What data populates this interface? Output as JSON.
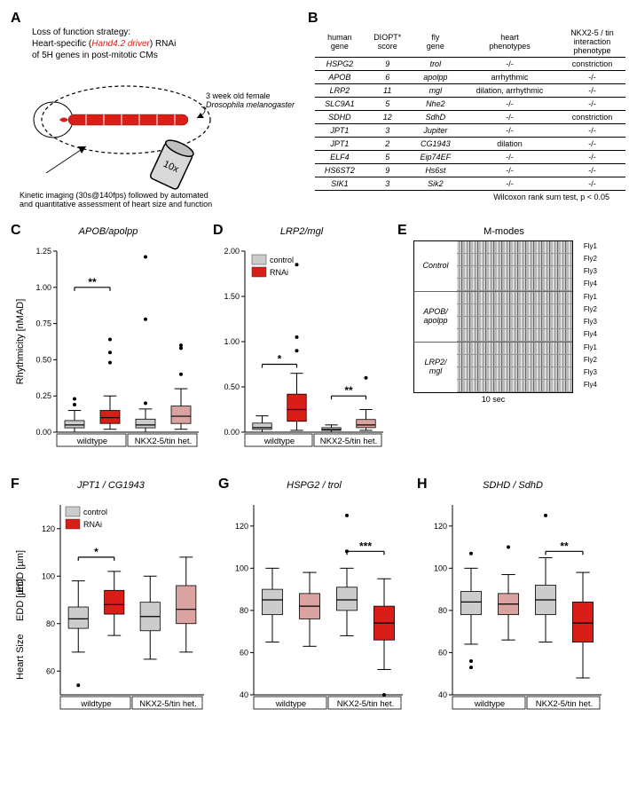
{
  "panelA": {
    "label": "A",
    "text_line1": "Loss of function strategy:",
    "text_line2a": "Heart-specific (",
    "text_line2b": "Hand4.2 driver",
    "text_line2c": ") RNAi",
    "text_line3": "of 5H genes in post-mitotic CMs",
    "side_text1": "3 week old female",
    "side_text2": "Drosophila melanogaster",
    "bottom_text1": "Kinetic imaging (30s@140fps) followed by automated",
    "bottom_text2": "and quantitative assessment of heart size and function",
    "lens_label": "10x"
  },
  "panelB": {
    "label": "B",
    "headers": [
      "human\ngene",
      "DIOPT*\nscore",
      "fly\ngene",
      "heart\nphenotypes",
      "NKX2-5 / tin\ninteraction\nphenotype"
    ],
    "rows": [
      [
        "HSPG2",
        "9",
        "trol",
        "-/-",
        "constriction"
      ],
      [
        "APOB",
        "6",
        "apolpp",
        "arrhythmic",
        "-/-"
      ],
      [
        "LRP2",
        "11",
        "mgl",
        "dilation, arrhythmic",
        "-/-"
      ],
      [
        "SLC9A1",
        "5",
        "Nhe2",
        "-/-",
        "-/-"
      ],
      [
        "SDHD",
        "12",
        "SdhD",
        "-/-",
        "constriction"
      ],
      [
        "JPT1",
        "3",
        "Jupiter",
        "-/-",
        "-/-"
      ],
      [
        "JPT1",
        "2",
        "CG1943",
        "dilation",
        "-/-"
      ],
      [
        "ELF4",
        "5",
        "Eip74EF",
        "-/-",
        "-/-"
      ],
      [
        "HS6ST2",
        "9",
        "Hs6st",
        "-/-",
        "-/-"
      ],
      [
        "SIK1",
        "3",
        "Sik2",
        "-/-",
        "-/-"
      ]
    ],
    "footnote": "Wilcoxon rank sum test,  p < 0.05"
  },
  "legend": {
    "control_label": "control",
    "control_color": "#cccccc",
    "rnai_label": "RNAi",
    "rnai_color": "#d91e18",
    "rnai_faded": "#dba39f"
  },
  "panelC": {
    "label": "C",
    "title": "APOB/apolpp",
    "ylabel": "Rhythmicity [nMAD]",
    "ylim": [
      0,
      1.25
    ],
    "yticks": [
      0.0,
      0.25,
      0.5,
      0.75,
      1.0,
      1.25
    ],
    "groups": [
      "wildtype",
      "NKX2-5/tin het."
    ],
    "sig": "**",
    "boxes": [
      {
        "x": 0,
        "color": "#cccccc",
        "q1": 0.03,
        "med": 0.05,
        "q3": 0.08,
        "lo": 0.0,
        "hi": 0.15,
        "outliers": [
          0.19,
          0.23
        ]
      },
      {
        "x": 1,
        "color": "#d91e18",
        "q1": 0.06,
        "med": 0.1,
        "q3": 0.15,
        "lo": 0.02,
        "hi": 0.25,
        "outliers": [
          0.48,
          0.55,
          0.64
        ]
      },
      {
        "x": 2,
        "color": "#cccccc",
        "q1": 0.03,
        "med": 0.05,
        "q3": 0.09,
        "lo": 0.0,
        "hi": 0.16,
        "outliers": [
          0.2,
          0.78,
          1.21
        ]
      },
      {
        "x": 3,
        "color": "#dba39f",
        "q1": 0.06,
        "med": 0.11,
        "q3": 0.18,
        "lo": 0.02,
        "hi": 0.3,
        "outliers": [
          0.4,
          0.58,
          0.6
        ]
      }
    ]
  },
  "panelD": {
    "label": "D",
    "title": "LRP2/mgl",
    "ylabel": "",
    "ylim": [
      0,
      2.0
    ],
    "yticks": [
      0.0,
      0.5,
      1.0,
      1.5,
      2.0
    ],
    "groups": [
      "wildtype",
      "NKX2-5/tin het."
    ],
    "sig1": "*",
    "sig2": "**",
    "boxes": [
      {
        "x": 0,
        "color": "#cccccc",
        "q1": 0.03,
        "med": 0.05,
        "q3": 0.1,
        "lo": 0.0,
        "hi": 0.18,
        "outliers": []
      },
      {
        "x": 1,
        "color": "#d91e18",
        "q1": 0.12,
        "med": 0.25,
        "q3": 0.42,
        "lo": 0.02,
        "hi": 0.65,
        "outliers": [
          0.9,
          1.05,
          1.85
        ]
      },
      {
        "x": 2,
        "color": "#cccccc",
        "q1": 0.02,
        "med": 0.03,
        "q3": 0.05,
        "lo": 0.0,
        "hi": 0.08,
        "outliers": []
      },
      {
        "x": 3,
        "color": "#dba39f",
        "q1": 0.05,
        "med": 0.08,
        "q3": 0.14,
        "lo": 0.02,
        "hi": 0.25,
        "outliers": [
          0.6
        ]
      }
    ]
  },
  "panelE": {
    "label": "E",
    "title": "M-modes",
    "sections": [
      "Control",
      "APOB/\napolpp",
      "LRP2/\nmgl"
    ],
    "fly_labels": [
      "Fly1",
      "Fly2",
      "Fly3",
      "Fly4"
    ],
    "xlabel": "10 sec"
  },
  "panelF": {
    "label": "F",
    "title": "JPT1 / CG1943",
    "ylabel_top": "EDD [µm]",
    "ylabel_bottom": "Heart Size",
    "ylim": [
      50,
      130
    ],
    "yticks": [
      60,
      80,
      100,
      120
    ],
    "groups": [
      "wildtype",
      "NKX2-5/tin het."
    ],
    "sig": "*",
    "boxes": [
      {
        "x": 0,
        "color": "#cccccc",
        "q1": 78,
        "med": 82,
        "q3": 87,
        "lo": 68,
        "hi": 98,
        "outliers": [
          54
        ]
      },
      {
        "x": 1,
        "color": "#d91e18",
        "q1": 84,
        "med": 88,
        "q3": 94,
        "lo": 75,
        "hi": 102,
        "outliers": []
      },
      {
        "x": 2,
        "color": "#cccccc",
        "q1": 77,
        "med": 83,
        "q3": 89,
        "lo": 65,
        "hi": 100,
        "outliers": []
      },
      {
        "x": 3,
        "color": "#dba39f",
        "q1": 80,
        "med": 86,
        "q3": 96,
        "lo": 68,
        "hi": 108,
        "outliers": []
      }
    ]
  },
  "panelG": {
    "label": "G",
    "title": "HSPG2 / trol",
    "ylim": [
      40,
      130
    ],
    "yticks": [
      40,
      60,
      80,
      100,
      120
    ],
    "groups": [
      "wildtype",
      "NKX2-5/tin het."
    ],
    "sig": "***",
    "boxes": [
      {
        "x": 0,
        "color": "#cccccc",
        "q1": 78,
        "med": 85,
        "q3": 90,
        "lo": 65,
        "hi": 100,
        "outliers": []
      },
      {
        "x": 1,
        "color": "#dba39f",
        "q1": 76,
        "med": 82,
        "q3": 88,
        "lo": 63,
        "hi": 98,
        "outliers": []
      },
      {
        "x": 2,
        "color": "#cccccc",
        "q1": 80,
        "med": 85,
        "q3": 91,
        "lo": 68,
        "hi": 100,
        "outliers": [
          108,
          125
        ]
      },
      {
        "x": 3,
        "color": "#d91e18",
        "q1": 66,
        "med": 74,
        "q3": 82,
        "lo": 52,
        "hi": 95,
        "outliers": [
          40
        ]
      }
    ]
  },
  "panelH": {
    "label": "H",
    "title": "SDHD / SdhD",
    "ylim": [
      40,
      130
    ],
    "yticks": [
      40,
      60,
      80,
      100,
      120
    ],
    "groups": [
      "wildtype",
      "NKX2-5/tin het."
    ],
    "sig": "**",
    "boxes": [
      {
        "x": 0,
        "color": "#cccccc",
        "q1": 78,
        "med": 84,
        "q3": 89,
        "lo": 64,
        "hi": 100,
        "outliers": [
          53,
          56,
          107
        ]
      },
      {
        "x": 1,
        "color": "#dba39f",
        "q1": 78,
        "med": 83,
        "q3": 88,
        "lo": 66,
        "hi": 97,
        "outliers": [
          110
        ]
      },
      {
        "x": 2,
        "color": "#cccccc",
        "q1": 78,
        "med": 85,
        "q3": 92,
        "lo": 65,
        "hi": 105,
        "outliers": [
          125
        ]
      },
      {
        "x": 3,
        "color": "#d91e18",
        "q1": 65,
        "med": 74,
        "q3": 84,
        "lo": 48,
        "hi": 98,
        "outliers": []
      }
    ]
  },
  "chart_style": {
    "box_width": 0.55,
    "axis_color": "#000000",
    "grid_color": "#ffffff",
    "outlier_color": "#000000",
    "outlier_radius": 2,
    "font_size_tick": 9,
    "font_size_title": 11
  }
}
